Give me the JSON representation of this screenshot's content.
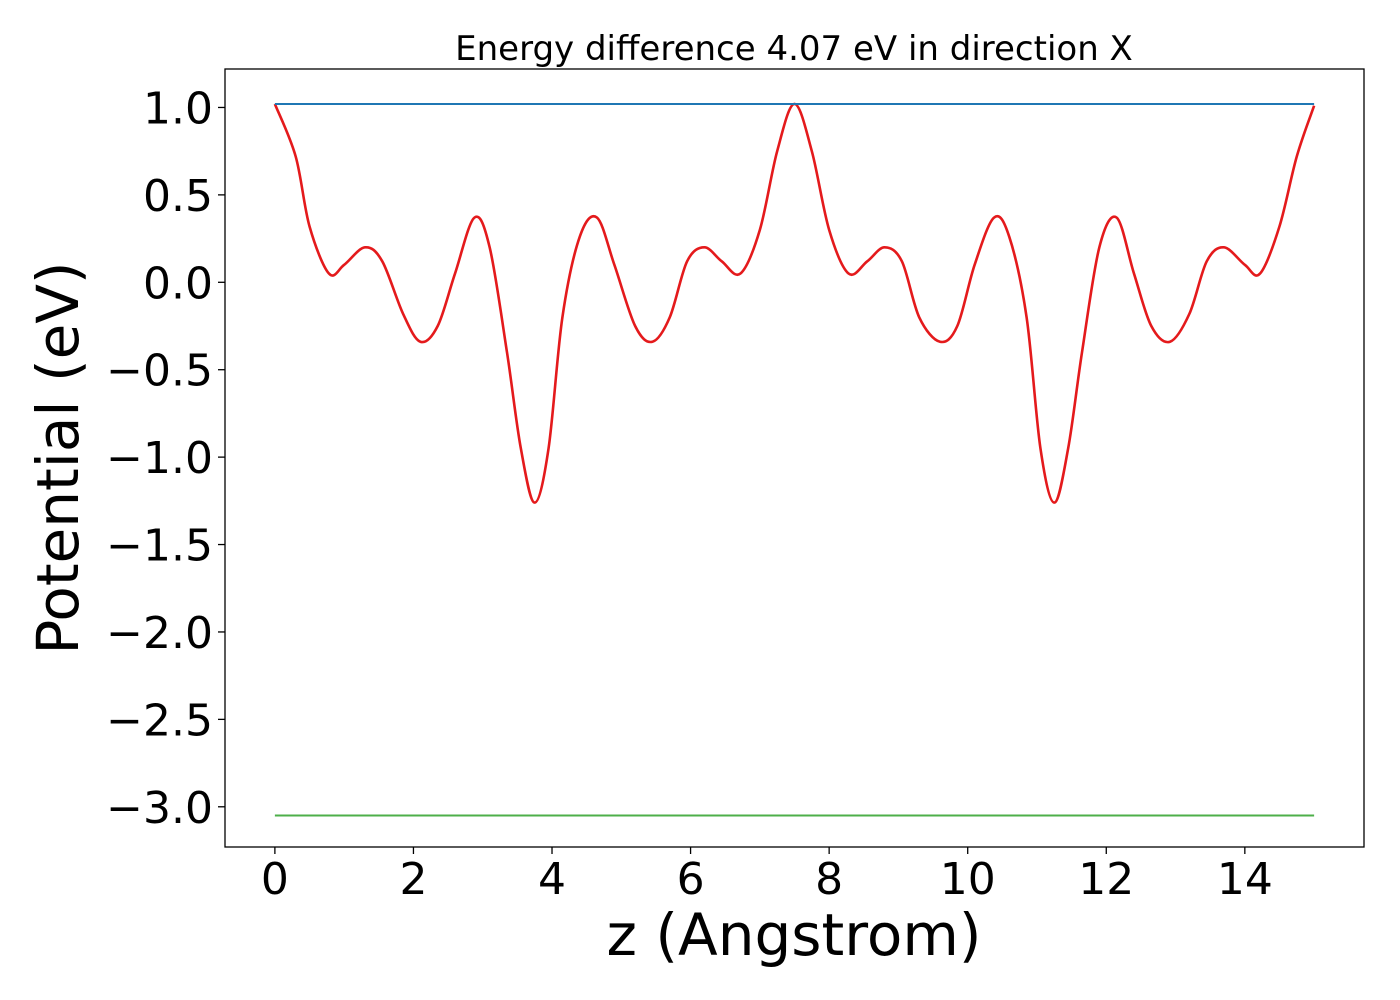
{
  "chart_data": {
    "type": "line",
    "title": "Energy difference 4.07 eV in direction X",
    "xlabel": "z (Angstrom)",
    "ylabel": "Potential (eV)",
    "xlim": [
      -0.72,
      15.72
    ],
    "ylim": [
      -3.23,
      1.22
    ],
    "xticks": [
      0,
      2,
      4,
      6,
      8,
      10,
      12,
      14
    ],
    "xtick_labels": [
      "0",
      "2",
      "4",
      "6",
      "8",
      "10",
      "12",
      "14"
    ],
    "yticks": [
      1.0,
      0.5,
      0.0,
      -0.5,
      -1.0,
      -1.5,
      -2.0,
      -2.5,
      -3.0
    ],
    "ytick_labels": [
      "1.0",
      "0.5",
      "0.0",
      "−0.5",
      "−1.0",
      "−1.5",
      "−2.0",
      "−2.5",
      "−3.0"
    ],
    "grid": false,
    "legend": "none",
    "series": [
      {
        "color": "#e41a1c",
        "x": [
          0.0,
          0.3,
          0.5,
          0.78,
          1.0,
          1.3,
          1.55,
          1.85,
          2.1,
          2.35,
          2.6,
          2.88,
          3.1,
          3.35,
          3.55,
          3.75,
          3.95,
          4.15,
          4.4,
          4.65,
          4.9,
          5.2,
          5.45,
          5.7,
          5.95,
          6.2,
          6.45,
          6.72,
          7.0,
          7.25,
          7.5,
          7.75,
          8.0,
          8.28,
          8.55,
          8.8,
          9.05,
          9.3,
          9.6,
          9.85,
          10.1,
          10.38,
          10.6,
          10.85,
          11.05,
          11.25,
          11.45,
          11.65,
          11.9,
          12.15,
          12.4,
          12.65,
          12.92,
          13.2,
          13.45,
          13.7,
          14.0,
          14.22,
          14.5,
          14.75,
          15.0
        ],
        "y": [
          1.02,
          0.72,
          0.32,
          0.05,
          0.1,
          0.2,
          0.12,
          -0.18,
          -0.34,
          -0.25,
          0.05,
          0.37,
          0.2,
          -0.4,
          -0.95,
          -1.26,
          -0.95,
          -0.2,
          0.26,
          0.37,
          0.1,
          -0.25,
          -0.34,
          -0.2,
          0.12,
          0.2,
          0.12,
          0.05,
          0.3,
          0.75,
          1.02,
          0.75,
          0.3,
          0.05,
          0.12,
          0.2,
          0.12,
          -0.2,
          -0.34,
          -0.25,
          0.1,
          0.37,
          0.26,
          -0.2,
          -0.95,
          -1.26,
          -0.95,
          -0.4,
          0.2,
          0.37,
          0.05,
          -0.25,
          -0.34,
          -0.18,
          0.12,
          0.2,
          0.1,
          0.05,
          0.32,
          0.72,
          1.01
        ]
      },
      {
        "color": "#1f77b4",
        "x": [
          0.0,
          15.0
        ],
        "y": [
          1.02,
          1.02
        ]
      },
      {
        "color": "#4daf4a",
        "x": [
          0.0,
          15.0
        ],
        "y": [
          -3.05,
          -3.05
        ]
      }
    ]
  }
}
